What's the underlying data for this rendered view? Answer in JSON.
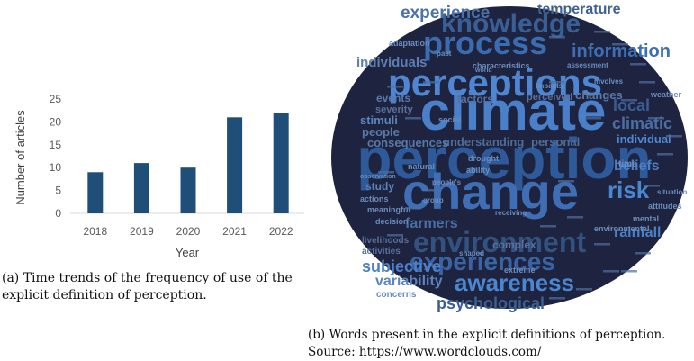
{
  "chart_data": {
    "type": "bar",
    "categories": [
      "2018",
      "2019",
      "2020",
      "2021",
      "2022"
    ],
    "values": [
      9,
      11,
      10,
      21,
      22
    ],
    "xlabel": "Year",
    "ylabel": "Number of articles",
    "ylim": [
      0,
      25
    ],
    "yticks": [
      0,
      5,
      10,
      15,
      20,
      25
    ],
    "grid": false,
    "bar_color": "#1f4e79"
  },
  "captions": {
    "a": "(a) Time trends of the frequency of use of the explicit definition of perception.",
    "b_line1": "(b) Words present in the explicit definitions of perception.",
    "b_line2": "Source: https://www.wordclouds.com/"
  },
  "wordcloud": {
    "background": "#1e2340",
    "words": [
      {
        "text": "perception",
        "color": "#2e5a9a"
      },
      {
        "text": "change",
        "color": "#3f6eb5"
      },
      {
        "text": "climate",
        "color": "#4a7fc9"
      },
      {
        "text": "perceptions",
        "color": "#4f86d1"
      },
      {
        "text": "environment",
        "color": "#34527f"
      },
      {
        "text": "process",
        "color": "#3c6cb0"
      },
      {
        "text": "knowledge",
        "color": "#3a5f95"
      },
      {
        "text": "experiences",
        "color": "#3a63a2"
      },
      {
        "text": "awareness",
        "color": "#4b86d0"
      },
      {
        "text": "psychological",
        "color": "#3c5f8f"
      },
      {
        "text": "information",
        "color": "#3d6fb2"
      },
      {
        "text": "experience",
        "color": "#4a71a8"
      },
      {
        "text": "temperature",
        "color": "#3f6192"
      },
      {
        "text": "individuals",
        "color": "#5b7fb0"
      },
      {
        "text": "risk",
        "color": "#4b86d0"
      },
      {
        "text": "subjective",
        "color": "#4d80c8"
      },
      {
        "text": "variability",
        "color": "#5b84bd"
      },
      {
        "text": "climatic",
        "color": "#4a6fa5"
      },
      {
        "text": "local",
        "color": "#3a5e94"
      },
      {
        "text": "beliefs",
        "color": "#4c7fc5"
      },
      {
        "text": "rainfall",
        "color": "#4c7fc5"
      },
      {
        "text": "farmers",
        "color": "#4a6fa5"
      },
      {
        "text": "understanding",
        "color": "#4f6d96"
      },
      {
        "text": "personal",
        "color": "#4f6d96"
      },
      {
        "text": "consequences",
        "color": "#587aa8"
      },
      {
        "text": "people",
        "color": "#587aa8"
      },
      {
        "text": "stimuli",
        "color": "#5b84bd"
      },
      {
        "text": "events",
        "color": "#587aa8"
      },
      {
        "text": "changes",
        "color": "#587aa8"
      },
      {
        "text": "factors",
        "color": "#5a7099"
      },
      {
        "text": "individual",
        "color": "#4f86d1"
      },
      {
        "text": "severity",
        "color": "#5a7099"
      },
      {
        "text": "perceived",
        "color": "#5a7099"
      },
      {
        "text": "complex",
        "color": "#5a7099"
      },
      {
        "text": "study",
        "color": "#5b84bd"
      },
      {
        "text": "livelihoods",
        "color": "#5a7099"
      },
      {
        "text": "activities",
        "color": "#5a7099"
      },
      {
        "text": "concerns",
        "color": "#6a8dbd"
      },
      {
        "text": "adaptation",
        "color": "#6a8dbd"
      },
      {
        "text": "characteristics",
        "color": "#6a8dbd"
      },
      {
        "text": "time",
        "color": "#6a8dbd"
      },
      {
        "text": "drought",
        "color": "#6a8dbd"
      },
      {
        "text": "social",
        "color": "#6a8dbd"
      },
      {
        "text": "ability",
        "color": "#6a8dbd"
      },
      {
        "text": "natural",
        "color": "#6a8dbd"
      },
      {
        "text": "actions",
        "color": "#6a8dbd"
      },
      {
        "text": "decision",
        "color": "#6a8dbd"
      },
      {
        "text": "meaningful",
        "color": "#6a8dbd"
      },
      {
        "text": "mental",
        "color": "#6a8dbd"
      },
      {
        "text": "environmental",
        "color": "#6a8dbd"
      },
      {
        "text": "extreme",
        "color": "#6a8dbd"
      },
      {
        "text": "attitudes",
        "color": "#6a8dbd"
      },
      {
        "text": "situation",
        "color": "#6a8dbd"
      },
      {
        "text": "weather",
        "color": "#6a8dbd"
      },
      {
        "text": "impacts",
        "color": "#6a8dbd"
      },
      {
        "text": "receiving",
        "color": "#6a8dbd"
      },
      {
        "text": "shaped",
        "color": "#6a8dbd"
      },
      {
        "text": "group",
        "color": "#6a8dbd"
      },
      {
        "text": "people's",
        "color": "#6a8dbd"
      },
      {
        "text": "observation",
        "color": "#6a8dbd"
      },
      {
        "text": "assessment",
        "color": "#6a8dbd"
      },
      {
        "text": "involves",
        "color": "#6a8dbd"
      },
      {
        "text": "past",
        "color": "#6a8dbd"
      },
      {
        "text": "world",
        "color": "#6a8dbd"
      }
    ]
  }
}
